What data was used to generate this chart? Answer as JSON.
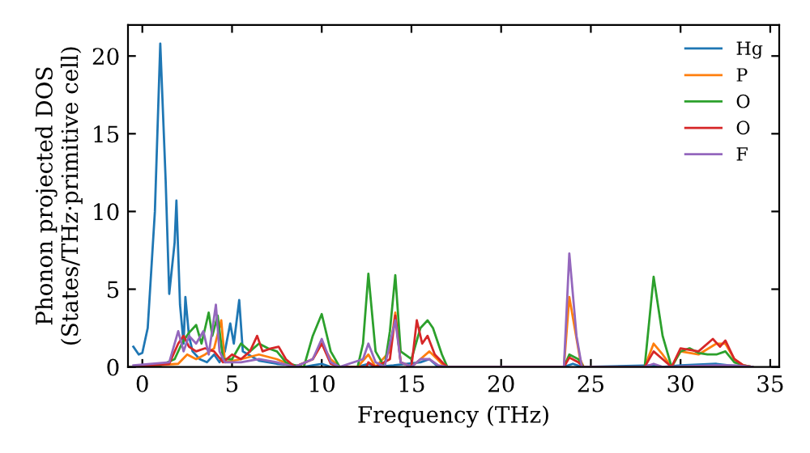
{
  "chart_data": {
    "type": "line",
    "xlabel": "Frequency (THz)",
    "ylabel": "Phonon projected DOS\n(States/THz·primitive cell)",
    "xlim": [
      -0.8,
      35.5
    ],
    "ylim": [
      0,
      22
    ],
    "xticks": [
      0,
      5,
      10,
      15,
      20,
      25,
      30,
      35
    ],
    "yticks": [
      0,
      5,
      10,
      15,
      20
    ],
    "grid": false,
    "legend": "top right",
    "marker": "none",
    "line_style": "solid",
    "series": [
      {
        "name": "Hg",
        "color": "#1f77b4",
        "x": [
          -0.5,
          -0.2,
          0,
          0.3,
          0.7,
          1.0,
          1.3,
          1.5,
          1.8,
          1.9,
          2.1,
          2.3,
          2.4,
          2.6,
          2.8,
          3.2,
          3.6,
          4.0,
          4.3,
          4.6,
          4.9,
          5.1,
          5.4,
          5.6,
          5.9,
          6.5,
          7.5,
          8.5,
          9,
          9.5,
          10,
          10.5,
          12,
          12.3,
          12.6,
          13,
          14,
          15.5,
          16,
          16.5,
          23.5,
          24,
          24.5,
          28.5,
          29,
          30,
          32,
          33.5
        ],
        "values": [
          1.3,
          0.8,
          0.9,
          2.5,
          10,
          20.8,
          12,
          4.7,
          8,
          10.7,
          4,
          1.5,
          4.5,
          2.0,
          1.0,
          0.5,
          0.3,
          0.8,
          0.3,
          1.0,
          2.8,
          1.5,
          4.3,
          1.0,
          0.8,
          0.4,
          0.2,
          0.1,
          0,
          0.1,
          0.2,
          0,
          0,
          0.1,
          0.2,
          0,
          0.1,
          0.3,
          0.5,
          0,
          0,
          0.2,
          0,
          0.1,
          0,
          0.1,
          0.2,
          0
        ]
      },
      {
        "name": "P",
        "color": "#ff7f0e",
        "x": [
          -0.5,
          2,
          2.5,
          3,
          3.5,
          4,
          4.4,
          4.6,
          5.5,
          6.5,
          7.5,
          8.5,
          9.5,
          10,
          10.5,
          11,
          12,
          12.6,
          13,
          13.8,
          14.1,
          14.4,
          15,
          15.5,
          16,
          16.7,
          17,
          23.5,
          23.8,
          24.1,
          24.4,
          24.6,
          28,
          28.5,
          29,
          29.5,
          30,
          31,
          32,
          32.5,
          33,
          33.5,
          34
        ],
        "values": [
          0,
          0.2,
          0.8,
          0.5,
          0.8,
          1.2,
          3.0,
          0.3,
          0.5,
          0.8,
          0.5,
          0,
          0.5,
          1.5,
          0.5,
          0,
          0,
          0.8,
          0,
          1.0,
          3.5,
          0.3,
          0,
          0.5,
          1.0,
          0.2,
          0,
          0,
          4.5,
          2.5,
          0.5,
          0,
          0,
          1.5,
          0.8,
          0,
          1.0,
          0.8,
          1.5,
          1.5,
          0.5,
          0.1,
          0
        ]
      },
      {
        "name": "O",
        "color": "#2ca02c",
        "x": [
          -0.5,
          1,
          1.8,
          2.2,
          2.6,
          3.0,
          3.3,
          3.7,
          3.9,
          4.2,
          4.5,
          5,
          5.5,
          6,
          6.5,
          7,
          7.5,
          8,
          8.5,
          9,
          9.5,
          10,
          10.5,
          11,
          12,
          12.3,
          12.6,
          13,
          13.5,
          13.8,
          14.1,
          14.4,
          15,
          15.5,
          15.9,
          16.2,
          16.7,
          17,
          23.5,
          23.8,
          24.3,
          24.6,
          28,
          28.5,
          29,
          29.5,
          30,
          30.5,
          31,
          31.5,
          32,
          32.5,
          33,
          33.5,
          34
        ],
        "values": [
          0,
          0.1,
          0.5,
          1.5,
          2.2,
          2.7,
          1.5,
          3.5,
          2.0,
          3.3,
          0.5,
          0.5,
          1.5,
          1.0,
          1.5,
          1.2,
          1.0,
          0.3,
          0.1,
          0,
          2.0,
          3.4,
          1.0,
          0,
          0,
          1.5,
          6.0,
          1.0,
          0,
          2.3,
          5.9,
          1.0,
          0.5,
          2.5,
          3.0,
          2.5,
          0.8,
          0,
          0,
          0.8,
          0.5,
          0,
          0,
          5.8,
          2,
          0,
          1.0,
          1.2,
          0.9,
          0.8,
          0.8,
          1.0,
          0.3,
          0.1,
          0
        ]
      },
      {
        "name": "O",
        "color": "#d62728",
        "x": [
          -0.5,
          1.5,
          2,
          2.3,
          2.6,
          3,
          3.5,
          4,
          4.5,
          5,
          5.5,
          6,
          6.4,
          6.7,
          7.2,
          7.6,
          8,
          8.5,
          9.5,
          10,
          10.5,
          11,
          12.5,
          12.6,
          13,
          13.8,
          14.1,
          14.4,
          15,
          15.3,
          15.6,
          15.9,
          16.3,
          16.8,
          17,
          23.5,
          23.8,
          24.3,
          24.6,
          28,
          28.5,
          29,
          29.5,
          30,
          31,
          31.8,
          32.2,
          32.5,
          33,
          33.5,
          34
        ],
        "values": [
          0,
          0.2,
          1.5,
          2.0,
          1.3,
          1.0,
          1.2,
          1.0,
          0.3,
          0.8,
          0.5,
          1.0,
          2.0,
          1.0,
          1.2,
          1.3,
          0.5,
          0,
          0.5,
          1.5,
          0.2,
          0,
          0,
          0.3,
          0,
          0.5,
          3.3,
          0.3,
          0,
          3.0,
          1.5,
          2.0,
          0.8,
          0.2,
          0,
          0,
          0.6,
          0.3,
          0,
          0,
          1.0,
          0.5,
          0,
          1.2,
          1.0,
          1.8,
          1.3,
          1.7,
          0.5,
          0.1,
          0
        ]
      },
      {
        "name": "F",
        "color": "#9467bd",
        "x": [
          -0.5,
          1.5,
          2,
          2.3,
          2.6,
          3,
          3.4,
          3.7,
          4.1,
          4.3,
          4.6,
          5.5,
          6.5,
          7.5,
          8.5,
          9.5,
          10,
          10.5,
          11,
          12.3,
          12.6,
          13,
          13.5,
          13.8,
          14.1,
          14.4,
          15,
          15.5,
          16,
          16.5,
          17,
          23.5,
          23.8,
          24.2,
          24.5,
          28,
          28.5,
          29,
          32,
          33,
          34
        ],
        "values": [
          0.1,
          0.3,
          2.3,
          1.0,
          2.0,
          1.5,
          2.3,
          0.8,
          4.0,
          1.0,
          0.3,
          0.3,
          0.5,
          0.3,
          0,
          0.5,
          1.8,
          0.3,
          0,
          0.5,
          1.5,
          0.3,
          0,
          1.5,
          3.0,
          0.3,
          0,
          0.5,
          0.5,
          0.1,
          0,
          0,
          7.3,
          2.0,
          0,
          0,
          0.2,
          0,
          0.1,
          0.1,
          0
        ]
      }
    ]
  }
}
